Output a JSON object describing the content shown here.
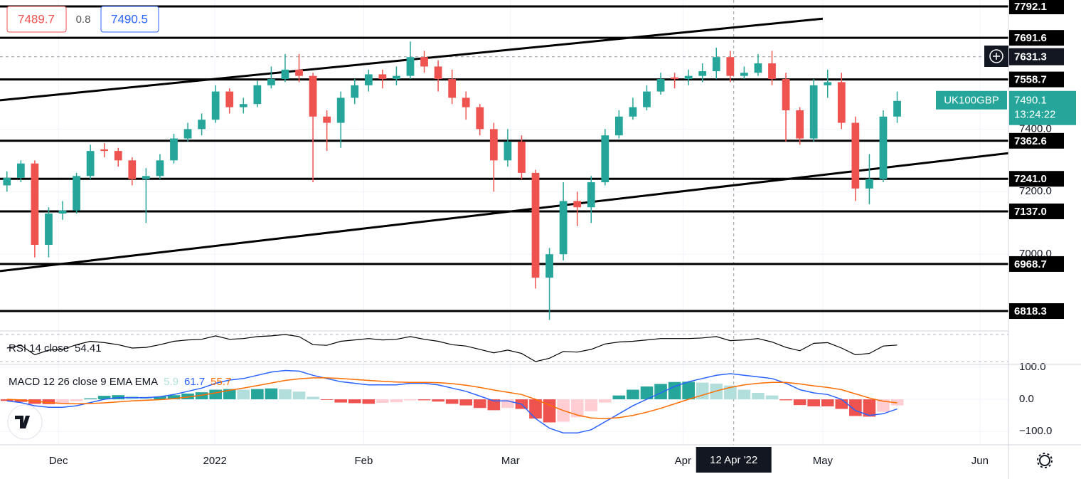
{
  "chart_data": {
    "type": "candlestick",
    "symbol": "UK100GBP",
    "countdown": "13:24:22",
    "header": {
      "bid": 7489.7,
      "spread": 0.8,
      "ask": 7490.5
    },
    "up_color": "#26a69a",
    "down_color": "#ef5350",
    "x": [
      1,
      3,
      5,
      7,
      9,
      11,
      13,
      15,
      17,
      19,
      21,
      23,
      25,
      27,
      29,
      31,
      33,
      35,
      37,
      39,
      41,
      43,
      45,
      47,
      49,
      51,
      53,
      55,
      57,
      59,
      61,
      63,
      65,
      67,
      69,
      71,
      73,
      75,
      77,
      79,
      81,
      83,
      85,
      87,
      89,
      91,
      93,
      95,
      97,
      99,
      101,
      103,
      105,
      107,
      109,
      111,
      113,
      115,
      117,
      119,
      121,
      123,
      125,
      127,
      129
    ],
    "open": [
      7220,
      7244,
      7290,
      7030,
      7130,
      7140,
      7250,
      7335,
      7330,
      7300,
      7240,
      7250,
      7300,
      7370,
      7400,
      7430,
      7520,
      7470,
      7480,
      7540,
      7560,
      7590,
      7570,
      7440,
      7420,
      7500,
      7540,
      7575,
      7560,
      7570,
      7630,
      7600,
      7560,
      7500,
      7470,
      7400,
      7300,
      7360,
      7260,
      6925,
      7000,
      7170,
      7150,
      7230,
      7380,
      7440,
      7470,
      7520,
      7565,
      7560,
      7570,
      7585,
      7630,
      7570,
      7580,
      7610,
      7560,
      7460,
      7370,
      7540,
      7550,
      7420,
      7210,
      7240,
      7440
    ],
    "high": [
      7265,
      7300,
      7300,
      7150,
      7170,
      7260,
      7350,
      7355,
      7340,
      7310,
      7275,
      7320,
      7385,
      7420,
      7450,
      7540,
      7530,
      7500,
      7555,
      7600,
      7640,
      7640,
      7580,
      7460,
      7520,
      7560,
      7590,
      7590,
      7600,
      7680,
      7650,
      7620,
      7590,
      7520,
      7480,
      7420,
      7400,
      7380,
      7270,
      7020,
      7230,
      7200,
      7250,
      7400,
      7460,
      7500,
      7540,
      7580,
      7580,
      7590,
      7610,
      7660,
      7650,
      7600,
      7640,
      7650,
      7580,
      7470,
      7560,
      7590,
      7580,
      7440,
      7320,
      7460,
      7520
    ],
    "low": [
      7200,
      7230,
      6990,
      6990,
      7110,
      7130,
      7240,
      7310,
      7280,
      7220,
      7100,
      7240,
      7290,
      7360,
      7380,
      7420,
      7450,
      7450,
      7470,
      7530,
      7550,
      7550,
      7230,
      7330,
      7340,
      7480,
      7520,
      7530,
      7540,
      7560,
      7580,
      7520,
      7480,
      7430,
      7380,
      7200,
      7280,
      7240,
      6890,
      6790,
      6980,
      7090,
      7100,
      7220,
      7370,
      7430,
      7460,
      7510,
      7530,
      7540,
      7550,
      7560,
      7550,
      7560,
      7570,
      7540,
      7360,
      7350,
      7360,
      7500,
      7400,
      7170,
      7160,
      7230,
      7420
    ],
    "close": [
      7244,
      7290,
      7030,
      7130,
      7140,
      7250,
      7330,
      7330,
      7300,
      7240,
      7250,
      7300,
      7370,
      7400,
      7430,
      7520,
      7470,
      7480,
      7540,
      7560,
      7590,
      7570,
      7440,
      7420,
      7500,
      7540,
      7575,
      7560,
      7570,
      7630,
      7600,
      7560,
      7500,
      7470,
      7400,
      7300,
      7360,
      7260,
      6925,
      7000,
      7170,
      7150,
      7230,
      7380,
      7440,
      7470,
      7520,
      7560,
      7560,
      7570,
      7585,
      7630,
      7570,
      7580,
      7610,
      7560,
      7460,
      7370,
      7540,
      7550,
      7420,
      7210,
      7240,
      7440,
      7490.1
    ],
    "xlim": [
      0,
      145
    ],
    "xticks": [
      {
        "value": 8.4,
        "label": "Dec"
      },
      {
        "value": 30.9,
        "label": "2022"
      },
      {
        "value": 52.3,
        "label": "Feb"
      },
      {
        "value": 73.4,
        "label": "Mar"
      },
      {
        "value": 98.2,
        "label": "Apr"
      },
      {
        "value": 118.3,
        "label": "May"
      },
      {
        "value": 140.9,
        "label": "Jun"
      }
    ],
    "ylim": [
      6754.7,
      7812.6
    ],
    "yticks": [
      {
        "value": 7000,
        "label": "7000.0"
      },
      {
        "value": 7200,
        "label": "7200.0"
      },
      {
        "value": 7400,
        "label": "7400.0"
      }
    ],
    "levels": [
      7792.1,
      7691.6,
      7558.7,
      7362.6,
      {
        "value": 7241,
        "label": "7241.0"
      },
      {
        "value": 7137,
        "label": "7137.0"
      },
      6968.7,
      6818.3
    ],
    "dashed_level": 7631.3,
    "crosshair": {
      "x": 105.5,
      "label": "12 Apr '22"
    },
    "trendlines": [
      {
        "x": [
          0,
          118.3
        ],
        "y": [
          7492,
          7753
        ]
      },
      {
        "x": [
          0,
          145
        ],
        "y": [
          6946,
          7323
        ]
      }
    ],
    "rsi": {
      "label": "RSI 14 close",
      "color": "#000000",
      "ylim": [
        25.8,
        75.3
      ],
      "bands": [
        70,
        30
      ],
      "values": [
        50,
        54,
        40,
        47,
        48,
        55,
        60,
        58,
        55,
        50,
        51,
        55,
        60,
        62,
        63,
        68,
        63,
        64,
        67,
        68,
        70,
        67,
        55,
        54,
        60,
        62,
        64,
        62,
        63,
        67,
        63,
        60,
        55,
        53,
        48,
        43,
        47,
        42,
        30,
        35,
        45,
        44,
        48,
        56,
        59,
        60,
        62,
        64,
        64,
        64,
        65,
        67,
        61,
        62,
        64,
        59,
        51,
        46,
        57,
        58,
        50,
        40,
        42,
        53,
        54.41
      ]
    },
    "macd": {
      "label": "MACD 12 26 close 9 EMA EMA",
      "legend_values": [
        5.9,
        61.7,
        55.7
      ],
      "legend_colors": [
        "#b2dfdb",
        "#2962ff",
        "#ff6d00"
      ],
      "ylim": [
        -142,
        108.9
      ],
      "yticks": [
        {
          "value": 100,
          "label": "100.0"
        },
        {
          "value": 0,
          "label": "0.0"
        },
        {
          "value": -100,
          "label": "−100.0"
        }
      ],
      "macd": [
        -5,
        -10,
        -20,
        -25,
        -25,
        -20,
        -10,
        0,
        5,
        5,
        5,
        8,
        15,
        25,
        35,
        50,
        60,
        65,
        75,
        85,
        90,
        88,
        75,
        65,
        55,
        50,
        45,
        45,
        45,
        50,
        50,
        45,
        35,
        25,
        10,
        -5,
        -5,
        -15,
        -60,
        -90,
        -105,
        -105,
        -95,
        -70,
        -45,
        -20,
        0,
        20,
        40,
        55,
        65,
        75,
        80,
        75,
        70,
        65,
        50,
        30,
        20,
        15,
        0,
        -35,
        -50,
        -45,
        -30
      ],
      "signal": [
        0,
        -2,
        -6,
        -10,
        -13,
        -14,
        -13,
        -11,
        -8,
        -5,
        -3,
        -1,
        2,
        7,
        13,
        20,
        28,
        35,
        43,
        51,
        59,
        64,
        67,
        67,
        65,
        62,
        59,
        56,
        54,
        53,
        53,
        52,
        49,
        44,
        37,
        29,
        22,
        15,
        0,
        -18,
        -35,
        -49,
        -58,
        -60,
        -57,
        -50,
        -40,
        -28,
        -14,
        0,
        13,
        26,
        37,
        45,
        50,
        53,
        53,
        48,
        42,
        37,
        30,
        17,
        4,
        -6,
        -11
      ],
      "histogram": [
        -5,
        -8,
        -14,
        -15,
        -12,
        -6,
        3,
        11,
        13,
        10,
        8,
        9,
        13,
        18,
        22,
        30,
        32,
        30,
        32,
        34,
        31,
        24,
        8,
        -2,
        -10,
        -12,
        -14,
        -11,
        -9,
        -3,
        -3,
        -7,
        -14,
        -19,
        -27,
        -34,
        -27,
        -30,
        -60,
        -72,
        -70,
        -56,
        -37,
        -10,
        12,
        30,
        40,
        48,
        54,
        55,
        52,
        49,
        43,
        30,
        20,
        12,
        -3,
        -18,
        -22,
        -22,
        -30,
        -52,
        -54,
        -39,
        -19
      ]
    }
  }
}
